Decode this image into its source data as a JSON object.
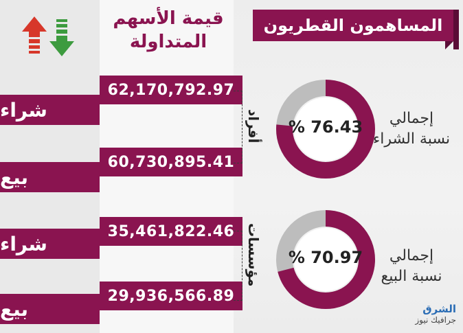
{
  "header": {
    "title": "المساهمون القطريون",
    "column_title_line1": "قيمة الأسهم",
    "column_title_line2": "المتداولة"
  },
  "rows": [
    {
      "value": "62,170,792.97",
      "label": "شراء"
    },
    {
      "value": "60,730,895.41",
      "label": "بيع"
    },
    {
      "value": "35,461,822.46",
      "label": "شراء"
    },
    {
      "value": "29,936,566.89",
      "label": "بيع"
    }
  ],
  "groups": {
    "individuals": "أفراد",
    "institutions": "مؤسسات"
  },
  "donuts": [
    {
      "percent_text": "% 76.43",
      "value": 76.43,
      "caption_line1": "إجمالي",
      "caption_line2": "نسبة الشراء"
    },
    {
      "percent_text": "% 70.97",
      "value": 70.97,
      "caption_line1": "إجمالي",
      "caption_line2": "نسبة البيع"
    }
  ],
  "logo": {
    "line1": "الشرق",
    "line2": "جرافيك نيوز"
  },
  "colors": {
    "accent": "#8a1450",
    "accent_dark": "#5a0c36",
    "donut_remainder": "#bdbdbd",
    "up_arrow": "#d7372a",
    "down_arrow": "#3d9b3f"
  },
  "icons": [
    "up-arrow-icon",
    "down-arrow-icon"
  ]
}
